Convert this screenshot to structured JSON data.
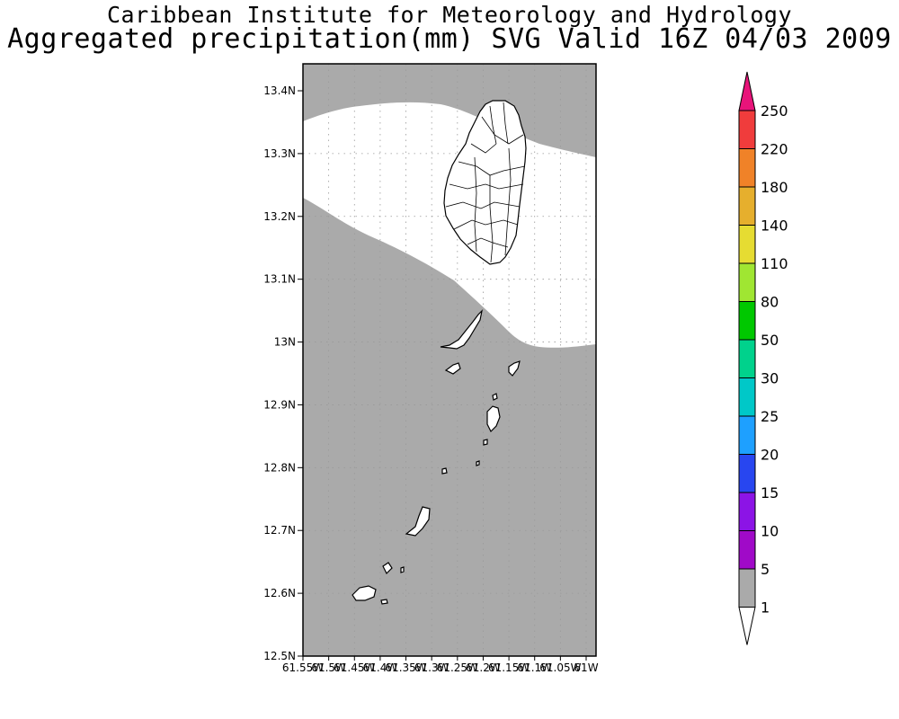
{
  "header": {
    "title": "Caribbean Institute for Meteorology and Hydrology",
    "subtitle": "Aggregated precipitation(mm) SVG Valid 16Z 04/03 2009"
  },
  "map": {
    "region": "St. Vincent and the Grenadines",
    "lon_range": [
      -61.55,
      -61.0
    ],
    "lat_range": [
      12.5,
      13.45
    ],
    "background_color": "#aaaaaa",
    "dry_zone_color": "#ffffff",
    "y_ticks": [
      "13.4N",
      "13.3N",
      "13.2N",
      "13.1N",
      "13N",
      "12.9N",
      "12.8N",
      "12.7N",
      "12.6N",
      "12.5N"
    ],
    "x_ticks": [
      "61.55W",
      "61.5W",
      "61.45W",
      "61.4W",
      "61.35W",
      "61.3W",
      "61.25W",
      "61.2W",
      "61.15W",
      "61.1W",
      "61.05W",
      "61W"
    ]
  },
  "legend": {
    "levels": [
      {
        "label": "250",
        "color": "#e8147a"
      },
      {
        "label": "220",
        "color": "#f03c3c"
      },
      {
        "label": "180",
        "color": "#f08228"
      },
      {
        "label": "140",
        "color": "#e6af2d"
      },
      {
        "label": "110",
        "color": "#e6dc32"
      },
      {
        "label": "80",
        "color": "#a0e632"
      },
      {
        "label": "50",
        "color": "#00c800"
      },
      {
        "label": "30",
        "color": "#00d28c"
      },
      {
        "label": "25",
        "color": "#00c8c8"
      },
      {
        "label": "20",
        "color": "#1ea0ff"
      },
      {
        "label": "15",
        "color": "#2846f0"
      },
      {
        "label": "10",
        "color": "#8c14e6"
      },
      {
        "label": "5",
        "color": "#a00ac8"
      },
      {
        "label": "1",
        "color": "#aaaaaa"
      }
    ]
  }
}
